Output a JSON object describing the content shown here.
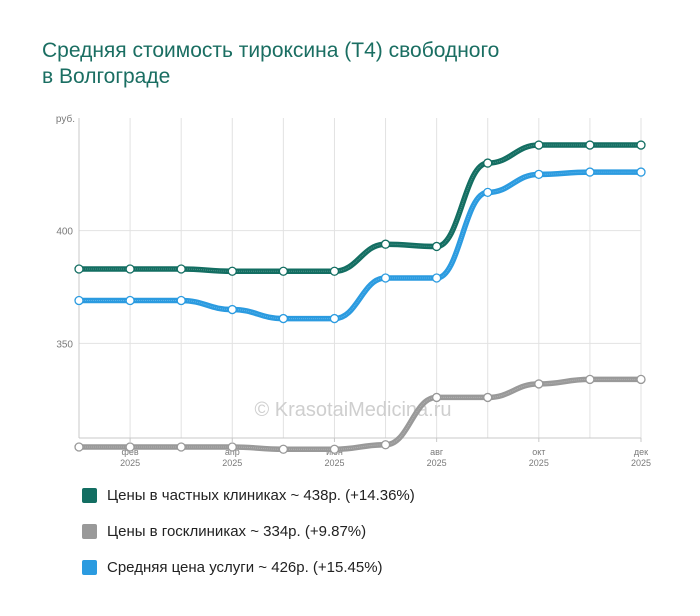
{
  "title_line1": "Средняя стоимость тироксина (Т4) свободного",
  "title_line2": "в Волгограде",
  "watermark": "© KrasotaiMedicina.ru",
  "chart_data": {
    "type": "line",
    "title": "Средняя стоимость тироксина (Т4) свободного в Волгограде",
    "ylabel": "руб.",
    "ylim": [
      308,
      450
    ],
    "yticks": [
      350,
      400
    ],
    "x_labels": [
      {
        "index": 1,
        "month": "фев",
        "year": "2025"
      },
      {
        "index": 3,
        "month": "апр",
        "year": "2025"
      },
      {
        "index": 5,
        "month": "июн",
        "year": "2025"
      },
      {
        "index": 7,
        "month": "авг",
        "year": "2025"
      },
      {
        "index": 9,
        "month": "окт",
        "year": "2025"
      },
      {
        "index": 11,
        "month": "дек",
        "year": "2025"
      }
    ],
    "grid": true,
    "series": [
      {
        "name": "Цены в частных клиниках",
        "color": "#136e62",
        "values": [
          383,
          383,
          383,
          382,
          382,
          382,
          394,
          393,
          430,
          438,
          438,
          438
        ]
      },
      {
        "name": "Цены в госклиниках",
        "color": "#999999",
        "values": [
          304,
          304,
          304,
          304,
          303,
          303,
          305,
          326,
          326,
          332,
          334,
          334
        ]
      },
      {
        "name": "Средняя цена услуги",
        "color": "#2b9be0",
        "values": [
          369,
          369,
          369,
          365,
          361,
          361,
          379,
          379,
          417,
          425,
          426,
          426
        ]
      }
    ]
  },
  "legend": [
    {
      "label": "Цены в частных клиниках ~ 438р. (+14.36%)",
      "color": "#136e62"
    },
    {
      "label": "Цены в госклиниках ~ 334р. (+9.87%)",
      "color": "#999999"
    },
    {
      "label": "Средняя цена услуги ~ 426р. (+15.45%)",
      "color": "#2b9be0"
    }
  ]
}
